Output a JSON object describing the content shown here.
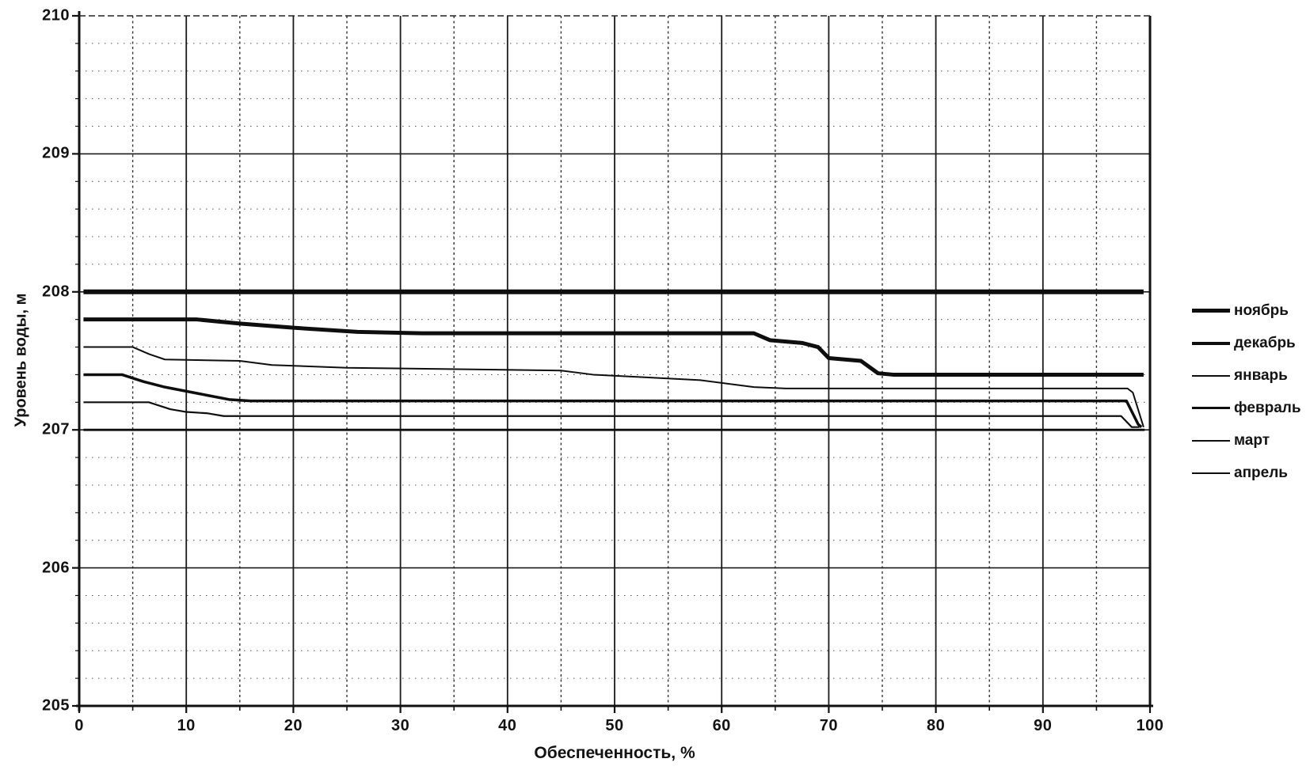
{
  "chart_data": {
    "type": "line",
    "title": "",
    "xlabel": "Обеспеченность, %",
    "ylabel": "Уровень воды, м",
    "xlim": [
      0,
      100
    ],
    "ylim": [
      205,
      210
    ],
    "x_ticks": [
      "0",
      "10",
      "20",
      "30",
      "40",
      "50",
      "60",
      "70",
      "80",
      "90",
      "100"
    ],
    "y_ticks": [
      "210",
      "209",
      "208",
      "207",
      "206",
      "205"
    ],
    "x_minor_step": 5,
    "y_minor_step": 0.2,
    "grid": "major solid, minor dotted",
    "legend_position": "right",
    "line_color": "#0e0e0e",
    "series": [
      {
        "key": "november",
        "name": "ноябрь",
        "width": 6,
        "points": [
          [
            0.4,
            208.0
          ],
          [
            99.4,
            208.0
          ]
        ]
      },
      {
        "key": "december",
        "name": "декабрь",
        "width": 5,
        "points": [
          [
            0.4,
            207.8
          ],
          [
            11,
            207.8
          ],
          [
            15,
            207.77
          ],
          [
            20,
            207.74
          ],
          [
            26,
            207.71
          ],
          [
            32,
            207.7
          ],
          [
            63,
            207.7
          ],
          [
            64.5,
            207.65
          ],
          [
            67.5,
            207.63
          ],
          [
            69,
            207.6
          ],
          [
            70,
            207.52
          ],
          [
            73,
            207.5
          ],
          [
            74.6,
            207.41
          ],
          [
            76,
            207.4
          ],
          [
            99.4,
            207.4
          ]
        ]
      },
      {
        "key": "january",
        "name": "январь",
        "width": 2,
        "points": [
          [
            0.4,
            207.6
          ],
          [
            5,
            207.6
          ],
          [
            6.5,
            207.55
          ],
          [
            8,
            207.51
          ],
          [
            15,
            207.5
          ],
          [
            18,
            207.47
          ],
          [
            25,
            207.45
          ],
          [
            45,
            207.43
          ],
          [
            48,
            207.4
          ],
          [
            53,
            207.38
          ],
          [
            58,
            207.36
          ],
          [
            61,
            207.33
          ],
          [
            63,
            207.31
          ],
          [
            66,
            207.3
          ],
          [
            97.9,
            207.3
          ],
          [
            98.4,
            207.27
          ],
          [
            99.4,
            207.02
          ]
        ]
      },
      {
        "key": "february",
        "name": "февраль",
        "width": 3.5,
        "points": [
          [
            0.4,
            207.4
          ],
          [
            4,
            207.4
          ],
          [
            6,
            207.35
          ],
          [
            8,
            207.31
          ],
          [
            10,
            207.28
          ],
          [
            12,
            207.25
          ],
          [
            14,
            207.22
          ],
          [
            16,
            207.21
          ],
          [
            97.8,
            207.21
          ],
          [
            98.9,
            207.04
          ],
          [
            99.2,
            207.02
          ]
        ]
      },
      {
        "key": "march",
        "name": "март",
        "width": 2.2,
        "points": [
          [
            0.4,
            207.2
          ],
          [
            6.5,
            207.2
          ],
          [
            8.5,
            207.15
          ],
          [
            10,
            207.13
          ],
          [
            12,
            207.12
          ],
          [
            13.5,
            207.1
          ],
          [
            97.3,
            207.1
          ],
          [
            98.3,
            207.02
          ],
          [
            99,
            207.02
          ]
        ]
      },
      {
        "key": "april",
        "name": "апрель",
        "width": 2.8,
        "points": [
          [
            0.4,
            207.0
          ],
          [
            99.5,
            207.0
          ]
        ]
      }
    ]
  }
}
